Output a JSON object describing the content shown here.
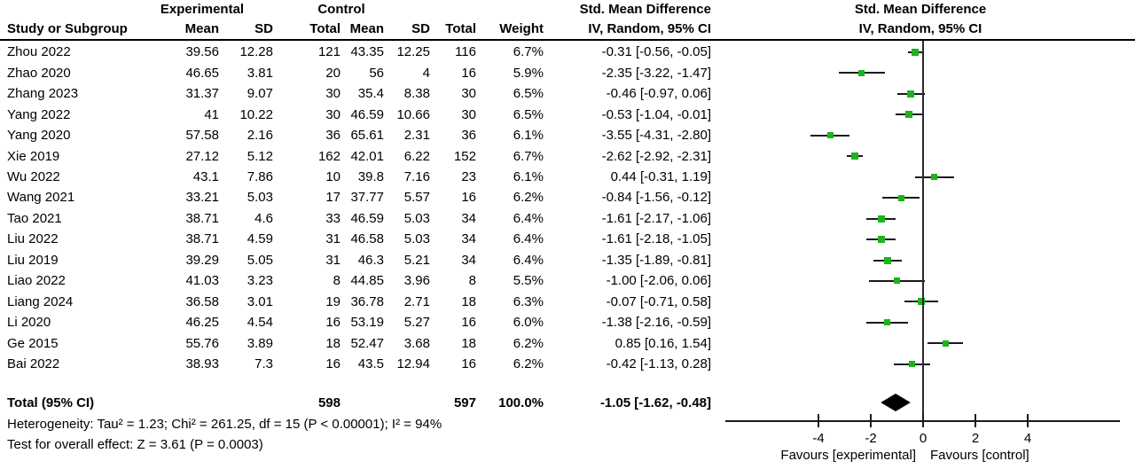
{
  "header": {
    "col_study": "Study or Subgroup",
    "group_experimental": "Experimental",
    "group_control": "Control",
    "col_mean": "Mean",
    "col_sd": "SD",
    "col_total": "Total",
    "col_weight": "Weight",
    "smd_text_col": {
      "title": "Std. Mean Difference",
      "method": "IV, Random, 95% CI"
    },
    "smd_plot_col": {
      "title": "Std. Mean Difference",
      "method": "IV, Random, 95% CI"
    }
  },
  "chart_data": {
    "type": "forest",
    "effect_measure": "Std. Mean Difference",
    "model": "IV, Random, 95% CI",
    "marker_color": "#1db31d",
    "axis": {
      "ticks": [
        -4,
        -2,
        0,
        2,
        4
      ],
      "xmin": -7.5,
      "xmax": 7.5,
      "favours_left": "Favours [experimental]",
      "favours_right": "Favours [control]"
    },
    "studies": [
      {
        "study": "Zhou 2022",
        "mean_e": "39.56",
        "sd_e": "12.28",
        "n_e": "121",
        "mean_c": "43.35",
        "sd_c": "12.25",
        "n_c": "116",
        "weight": "6.7%",
        "weight_val": 6.7,
        "est": -0.31,
        "lo": -0.56,
        "hi": -0.05,
        "ci_text": "-0.31 [-0.56, -0.05]"
      },
      {
        "study": "Zhao 2020",
        "mean_e": "46.65",
        "sd_e": "3.81",
        "n_e": "20",
        "mean_c": "56",
        "sd_c": "4",
        "n_c": "16",
        "weight": "5.9%",
        "weight_val": 5.9,
        "est": -2.35,
        "lo": -3.22,
        "hi": -1.47,
        "ci_text": "-2.35 [-3.22, -1.47]"
      },
      {
        "study": "Zhang 2023",
        "mean_e": "31.37",
        "sd_e": "9.07",
        "n_e": "30",
        "mean_c": "35.4",
        "sd_c": "8.38",
        "n_c": "30",
        "weight": "6.5%",
        "weight_val": 6.5,
        "est": -0.46,
        "lo": -0.97,
        "hi": 0.06,
        "ci_text": "-0.46 [-0.97, 0.06]"
      },
      {
        "study": "Yang 2022",
        "mean_e": "41",
        "sd_e": "10.22",
        "n_e": "30",
        "mean_c": "46.59",
        "sd_c": "10.66",
        "n_c": "30",
        "weight": "6.5%",
        "weight_val": 6.5,
        "est": -0.53,
        "lo": -1.04,
        "hi": -0.01,
        "ci_text": "-0.53 [-1.04, -0.01]"
      },
      {
        "study": "Yang 2020",
        "mean_e": "57.58",
        "sd_e": "2.16",
        "n_e": "36",
        "mean_c": "65.61",
        "sd_c": "2.31",
        "n_c": "36",
        "weight": "6.1%",
        "weight_val": 6.1,
        "est": -3.55,
        "lo": -4.31,
        "hi": -2.8,
        "ci_text": "-3.55 [-4.31, -2.80]"
      },
      {
        "study": "Xie 2019",
        "mean_e": "27.12",
        "sd_e": "5.12",
        "n_e": "162",
        "mean_c": "42.01",
        "sd_c": "6.22",
        "n_c": "152",
        "weight": "6.7%",
        "weight_val": 6.7,
        "est": -2.62,
        "lo": -2.92,
        "hi": -2.31,
        "ci_text": "-2.62 [-2.92, -2.31]"
      },
      {
        "study": "Wu 2022",
        "mean_e": "43.1",
        "sd_e": "7.86",
        "n_e": "10",
        "mean_c": "39.8",
        "sd_c": "7.16",
        "n_c": "23",
        "weight": "6.1%",
        "weight_val": 6.1,
        "est": 0.44,
        "lo": -0.31,
        "hi": 1.19,
        "ci_text": "0.44 [-0.31, 1.19]"
      },
      {
        "study": "Wang 2021",
        "mean_e": "33.21",
        "sd_e": "5.03",
        "n_e": "17",
        "mean_c": "37.77",
        "sd_c": "5.57",
        "n_c": "16",
        "weight": "6.2%",
        "weight_val": 6.2,
        "est": -0.84,
        "lo": -1.56,
        "hi": -0.12,
        "ci_text": "-0.84 [-1.56, -0.12]"
      },
      {
        "study": "Tao 2021",
        "mean_e": "38.71",
        "sd_e": "4.6",
        "n_e": "33",
        "mean_c": "46.59",
        "sd_c": "5.03",
        "n_c": "34",
        "weight": "6.4%",
        "weight_val": 6.4,
        "est": -1.61,
        "lo": -2.17,
        "hi": -1.06,
        "ci_text": "-1.61 [-2.17, -1.06]"
      },
      {
        "study": "Liu 2022",
        "mean_e": "38.71",
        "sd_e": "4.59",
        "n_e": "31",
        "mean_c": "46.58",
        "sd_c": "5.03",
        "n_c": "34",
        "weight": "6.4%",
        "weight_val": 6.4,
        "est": -1.61,
        "lo": -2.18,
        "hi": -1.05,
        "ci_text": "-1.61 [-2.18, -1.05]"
      },
      {
        "study": "Liu 2019",
        "mean_e": "39.29",
        "sd_e": "5.05",
        "n_e": "31",
        "mean_c": "46.3",
        "sd_c": "5.21",
        "n_c": "34",
        "weight": "6.4%",
        "weight_val": 6.4,
        "est": -1.35,
        "lo": -1.89,
        "hi": -0.81,
        "ci_text": "-1.35 [-1.89, -0.81]"
      },
      {
        "study": "Liao 2022",
        "mean_e": "41.03",
        "sd_e": "3.23",
        "n_e": "8",
        "mean_c": "44.85",
        "sd_c": "3.96",
        "n_c": "8",
        "weight": "5.5%",
        "weight_val": 5.5,
        "est": -1.0,
        "lo": -2.06,
        "hi": 0.06,
        "ci_text": "-1.00 [-2.06, 0.06]"
      },
      {
        "study": "Liang 2024",
        "mean_e": "36.58",
        "sd_e": "3.01",
        "n_e": "19",
        "mean_c": "36.78",
        "sd_c": "2.71",
        "n_c": "18",
        "weight": "6.3%",
        "weight_val": 6.3,
        "est": -0.07,
        "lo": -0.71,
        "hi": 0.58,
        "ci_text": "-0.07 [-0.71, 0.58]"
      },
      {
        "study": "Li 2020",
        "mean_e": "46.25",
        "sd_e": "4.54",
        "n_e": "16",
        "mean_c": "53.19",
        "sd_c": "5.27",
        "n_c": "16",
        "weight": "6.0%",
        "weight_val": 6.0,
        "est": -1.38,
        "lo": -2.16,
        "hi": -0.59,
        "ci_text": "-1.38 [-2.16, -0.59]"
      },
      {
        "study": "Ge 2015",
        "mean_e": "55.76",
        "sd_e": "3.89",
        "n_e": "18",
        "mean_c": "52.47",
        "sd_c": "3.68",
        "n_c": "18",
        "weight": "6.2%",
        "weight_val": 6.2,
        "est": 0.85,
        "lo": 0.16,
        "hi": 1.54,
        "ci_text": "0.85 [0.16, 1.54]"
      },
      {
        "study": "Bai 2022",
        "mean_e": "38.93",
        "sd_e": "7.3",
        "n_e": "16",
        "mean_c": "43.5",
        "sd_c": "12.94",
        "n_c": "16",
        "weight": "6.2%",
        "weight_val": 6.2,
        "est": -0.42,
        "lo": -1.13,
        "hi": 0.28,
        "ci_text": "-0.42 [-1.13, 0.28]"
      }
    ],
    "total": {
      "label": "Total (95% CI)",
      "n_e": "598",
      "n_c": "597",
      "weight": "100.0%",
      "est": -1.05,
      "lo": -1.62,
      "hi": -0.48,
      "ci_text": "-1.05 [-1.62, -0.48]"
    },
    "footer": {
      "heterogeneity": "Heterogeneity: Tau² = 1.23; Chi² = 261.25, df = 15 (P < 0.00001); I² = 94%",
      "overall_effect": "Test for overall effect: Z = 3.61 (P = 0.0003)"
    }
  }
}
